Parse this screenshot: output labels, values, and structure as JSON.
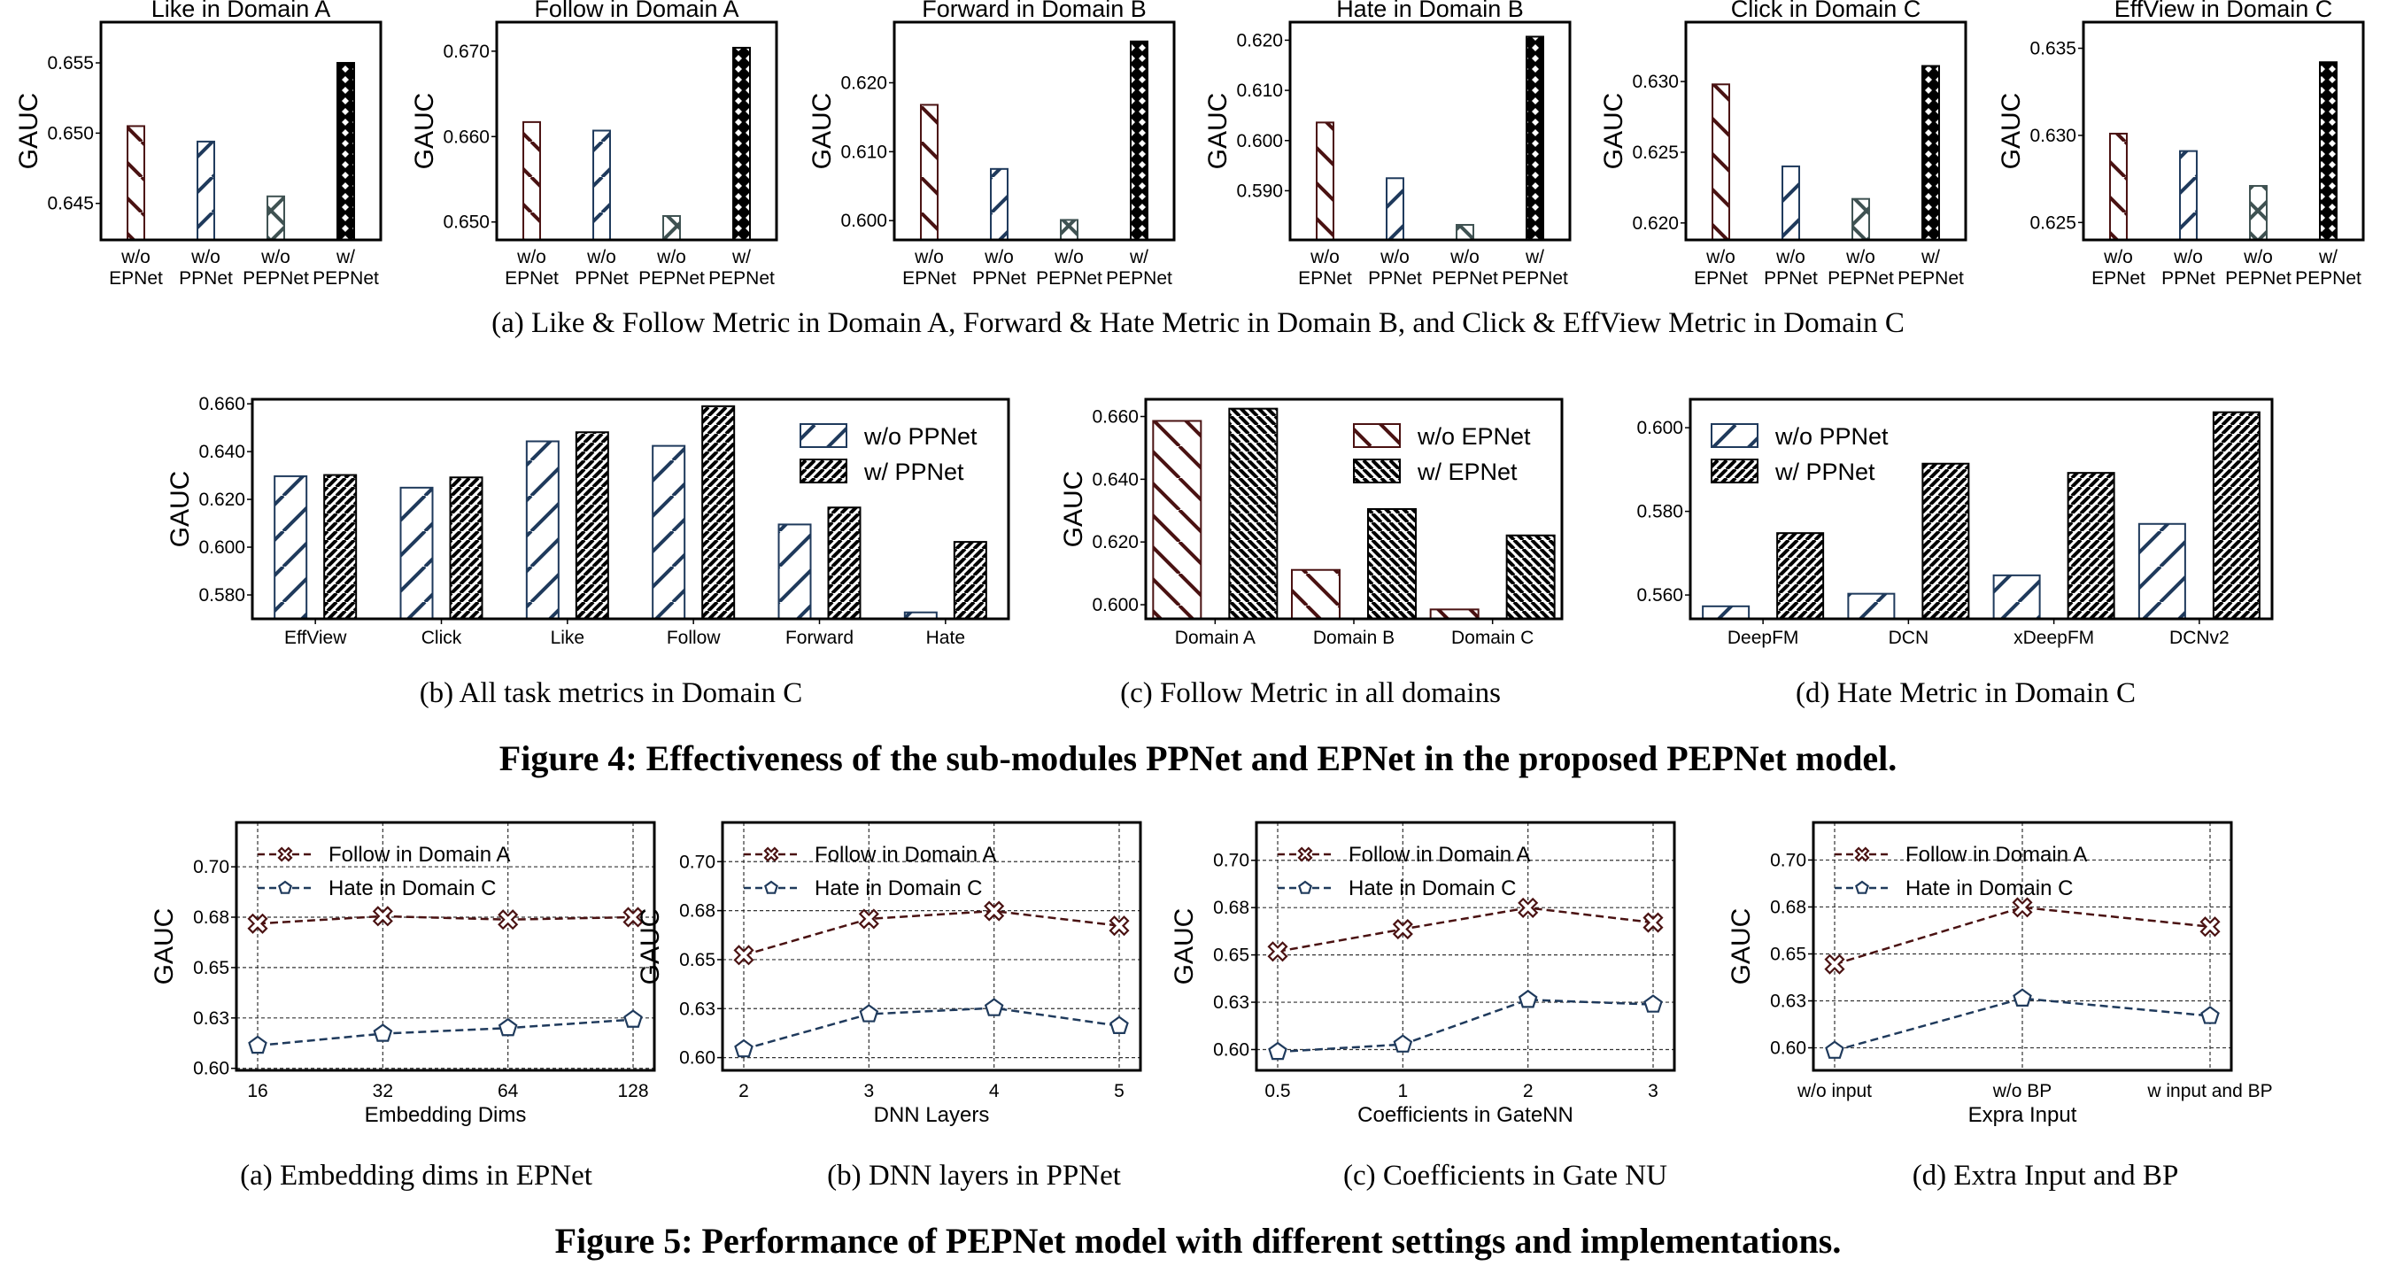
{
  "colors": {
    "wo_epnet": "#4a1212",
    "wo_ppnet": "#1f3a5c",
    "wo_pepnet": "#3f5252",
    "w_pepnet": "#000000",
    "follow_line": "#4a1212",
    "hate_line": "#1f3a5c"
  },
  "captions": {
    "fig4_a": "(a)  Like & Follow Metric in Domain A, Forward & Hate Metric in Domain B, and Click & EffView Metric in Domain C",
    "fig4_b": "(b)  All task metrics in Domain C",
    "fig4_c": "(c)  Follow Metric in all domains",
    "fig4_d": "(d)  Hate Metric in Domain C",
    "fig4": "Figure 4: Effectiveness of the sub-modules PPNet and EPNet in the proposed PEPNet model.",
    "fig5_a": "(a)  Embedding dims in EPNet",
    "fig5_b": "(b)  DNN layers in PPNet",
    "fig5_c": "(c)  Coefficients in Gate NU",
    "fig5_d": "(d)  Extra Input and BP",
    "fig5": "Figure 5: Performance of PEPNet model with different settings and implementations."
  },
  "chart_data": [
    {
      "id": "fig4a-like-a",
      "type": "bar",
      "title": "Like in Domain A",
      "ylabel": "GAUC",
      "categories": [
        "w/o\nEPNet",
        "w/o\nPPNet",
        "w/o\nPEPNet",
        "w/\nPEPNet"
      ],
      "values": [
        0.6505,
        0.6494,
        0.6455,
        0.655
      ],
      "patterns": [
        "wo_epnet",
        "wo_ppnet",
        "wo_pepnet",
        "w_pepnet"
      ],
      "ylim": [
        0.6424,
        0.6579
      ],
      "yticks": [
        0.645,
        0.65,
        0.655
      ],
      "ytick_labels": [
        "0.645",
        "0.650",
        "0.655"
      ]
    },
    {
      "id": "fig4a-follow-a",
      "type": "bar",
      "title": "Follow in Domain A",
      "ylabel": "GAUC",
      "categories": [
        "w/o\nEPNet",
        "w/o\nPPNet",
        "w/o\nPEPNet",
        "w/\nPEPNet"
      ],
      "values": [
        0.6617,
        0.6607,
        0.6507,
        0.6704
      ],
      "patterns": [
        "wo_epnet",
        "wo_ppnet",
        "wo_pepnet",
        "w_pepnet"
      ],
      "ylim": [
        0.6479,
        0.6734
      ],
      "yticks": [
        0.65,
        0.66,
        0.67
      ],
      "ytick_labels": [
        "0.650",
        "0.660",
        "0.670"
      ]
    },
    {
      "id": "fig4a-forward-b",
      "type": "bar",
      "title": "Forward in Domain B",
      "ylabel": "GAUC",
      "categories": [
        "w/o\nEPNet",
        "w/o\nPPNet",
        "w/o\nPEPNet",
        "w/\nPEPNet"
      ],
      "values": [
        0.6168,
        0.6075,
        0.6001,
        0.626
      ],
      "patterns": [
        "wo_epnet",
        "wo_ppnet",
        "wo_pepnet",
        "w_pepnet"
      ],
      "ylim": [
        0.5972,
        0.6288
      ],
      "yticks": [
        0.6,
        0.61,
        0.62
      ],
      "ytick_labels": [
        "0.600",
        "0.610",
        "0.620"
      ]
    },
    {
      "id": "fig4a-hate-b",
      "type": "bar",
      "title": "Hate in Domain B",
      "ylabel": "GAUC",
      "categories": [
        "w/o\nEPNet",
        "w/o\nPPNet",
        "w/o\nPEPNet",
        "w/\nPEPNet"
      ],
      "values": [
        0.6036,
        0.5925,
        0.5832,
        0.6207
      ],
      "patterns": [
        "wo_epnet",
        "wo_ppnet",
        "wo_pepnet",
        "w_pepnet"
      ],
      "ylim": [
        0.5802,
        0.6236
      ],
      "yticks": [
        0.59,
        0.6,
        0.61,
        0.62
      ],
      "ytick_labels": [
        "0.590",
        "0.600",
        "0.610",
        "0.620"
      ]
    },
    {
      "id": "fig4a-click-c",
      "type": "bar",
      "title": "Click in Domain C",
      "ylabel": "GAUC",
      "categories": [
        "w/o\nEPNet",
        "w/o\nPPNet",
        "w/o\nPEPNet",
        "w/\nPEPNet"
      ],
      "values": [
        0.6298,
        0.624,
        0.6217,
        0.6311
      ],
      "patterns": [
        "wo_epnet",
        "wo_ppnet",
        "wo_pepnet",
        "w_pepnet"
      ],
      "ylim": [
        0.6188,
        0.6342
      ],
      "yticks": [
        0.62,
        0.625,
        0.63
      ],
      "ytick_labels": [
        "0.620",
        "0.625",
        "0.630"
      ]
    },
    {
      "id": "fig4a-effview-c",
      "type": "bar",
      "title": "EffView in Domain C",
      "ylabel": "GAUC",
      "categories": [
        "w/o\nEPNet",
        "w/o\nPPNet",
        "w/o\nPEPNet",
        "w/\nPEPNet"
      ],
      "values": [
        0.6301,
        0.6291,
        0.6271,
        0.6342
      ],
      "patterns": [
        "wo_epnet",
        "wo_ppnet",
        "wo_pepnet",
        "w_pepnet"
      ],
      "ylim": [
        0.624,
        0.6365
      ],
      "yticks": [
        0.625,
        0.63,
        0.635
      ],
      "ytick_labels": [
        "0.625",
        "0.630",
        "0.635"
      ]
    },
    {
      "id": "fig4b",
      "type": "bar",
      "title": "",
      "ylabel": "GAUC",
      "legend": "top-right",
      "categories": [
        "EffView",
        "Click",
        "Like",
        "Follow",
        "Forward",
        "Hate"
      ],
      "series": [
        {
          "name": "w/o PPNet",
          "pattern": "wo_ppnet",
          "values": [
            0.6297,
            0.6249,
            0.6443,
            0.6424,
            0.6095,
            0.5727
          ]
        },
        {
          "name": "w/ PPNet",
          "pattern": "w_ppnet",
          "values": [
            0.6302,
            0.6292,
            0.6481,
            0.659,
            0.6166,
            0.6022
          ]
        }
      ],
      "ylim": [
        0.57,
        0.6619
      ],
      "yticks": [
        0.58,
        0.6,
        0.62,
        0.64,
        0.66
      ],
      "ytick_labels": [
        "0.580",
        "0.600",
        "0.620",
        "0.640",
        "0.660"
      ]
    },
    {
      "id": "fig4c",
      "type": "bar",
      "title": "",
      "ylabel": "GAUC",
      "legend": "top-right",
      "categories": [
        "Domain A",
        "Domain B",
        "Domain C"
      ],
      "series": [
        {
          "name": "w/o EPNet",
          "pattern": "wo_epnet_b",
          "values": [
            0.6586,
            0.6111,
            0.5985
          ]
        },
        {
          "name": "w/ EPNet",
          "pattern": "w_epnet",
          "values": [
            0.6625,
            0.6305,
            0.6221
          ]
        }
      ],
      "ylim": [
        0.5955,
        0.6655
      ],
      "yticks": [
        0.6,
        0.62,
        0.64,
        0.66
      ],
      "ytick_labels": [
        "0.600",
        "0.620",
        "0.640",
        "0.660"
      ]
    },
    {
      "id": "fig4d",
      "type": "bar",
      "title": "",
      "ylabel": "",
      "legend": "top-left",
      "categories": [
        "DeepFM",
        "DCN",
        "xDeepFM",
        "DCNv2"
      ],
      "series": [
        {
          "name": "w/o PPNet",
          "pattern": "wo_ppnet",
          "values": [
            0.5573,
            0.5603,
            0.5647,
            0.577
          ]
        },
        {
          "name": "w/ PPNet",
          "pattern": "w_ppnet",
          "values": [
            0.5748,
            0.5914,
            0.5892,
            0.6037
          ]
        }
      ],
      "ylim": [
        0.5543,
        0.6068
      ],
      "yticks": [
        0.56,
        0.58,
        0.6
      ],
      "ytick_labels": [
        "0.560",
        "0.580",
        "0.600"
      ]
    },
    {
      "id": "fig5a",
      "type": "line",
      "xlabel": "Embedding Dims",
      "ylabel": "GAUC",
      "legend": "top-left",
      "x": [
        "16",
        "32",
        "64",
        "128"
      ],
      "series": [
        {
          "name": "Follow in Domain A",
          "marker": "x",
          "color": "follow_line",
          "values": [
            0.6718,
            0.6755,
            0.6738,
            0.675
          ]
        },
        {
          "name": "Hate in Domain C",
          "marker": "pentagon",
          "color": "hate_line",
          "values": [
            0.6113,
            0.6172,
            0.62,
            0.6242
          ]
        }
      ],
      "ylim": [
        0.599,
        0.722
      ],
      "yticks": [
        0.6,
        0.625,
        0.65,
        0.675,
        0.7
      ],
      "ytick_labels": [
        "0.60",
        "0.63",
        "0.65",
        "0.68",
        "0.70"
      ],
      "grid": true
    },
    {
      "id": "fig5b",
      "type": "line",
      "xlabel": "DNN Layers",
      "ylabel": "GAUC",
      "legend": "top-left",
      "x": [
        "2",
        "3",
        "4",
        "5"
      ],
      "series": [
        {
          "name": "Follow in Domain A",
          "marker": "x",
          "color": "follow_line",
          "values": [
            0.6523,
            0.6708,
            0.6748,
            0.6673
          ]
        },
        {
          "name": "Hate in Domain C",
          "marker": "pentagon",
          "color": "hate_line",
          "values": [
            0.6043,
            0.6222,
            0.6253,
            0.6162
          ]
        }
      ],
      "ylim": [
        0.5935,
        0.72
      ],
      "yticks": [
        0.6,
        0.625,
        0.65,
        0.675,
        0.7
      ],
      "ytick_labels": [
        "0.60",
        "0.63",
        "0.65",
        "0.68",
        "0.70"
      ],
      "grid": true
    },
    {
      "id": "fig5c",
      "type": "line",
      "xlabel": "Coefficients in GateNN",
      "ylabel": "GAUC",
      "legend": "top-left",
      "x": [
        "0.5",
        "1",
        "2",
        "3"
      ],
      "series": [
        {
          "name": "Follow in Domain A",
          "marker": "x",
          "color": "follow_line",
          "values": [
            0.6518,
            0.6636,
            0.6749,
            0.6671
          ]
        },
        {
          "name": "Hate in Domain C",
          "marker": "pentagon",
          "color": "hate_line",
          "values": [
            0.5988,
            0.6027,
            0.6263,
            0.6238
          ]
        }
      ],
      "ylim": [
        0.589,
        0.72
      ],
      "yticks": [
        0.6,
        0.625,
        0.65,
        0.675,
        0.7
      ],
      "ytick_labels": [
        "0.60",
        "0.63",
        "0.65",
        "0.68",
        "0.70"
      ],
      "grid": true
    },
    {
      "id": "fig5d",
      "type": "line",
      "xlabel": "Expra Input",
      "ylabel": "GAUC",
      "legend": "top-left",
      "x": [
        "w/o input",
        "w/o BP",
        "w input and BP"
      ],
      "series": [
        {
          "name": "Follow in Domain A",
          "marker": "x",
          "color": "follow_line",
          "values": [
            0.6445,
            0.6748,
            0.6645
          ]
        },
        {
          "name": "Hate in Domain C",
          "marker": "pentagon",
          "color": "hate_line",
          "values": [
            0.5985,
            0.6263,
            0.617
          ]
        }
      ],
      "ylim": [
        0.588,
        0.72
      ],
      "yticks": [
        0.6,
        0.625,
        0.65,
        0.675,
        0.7
      ],
      "ytick_labels": [
        "0.60",
        "0.63",
        "0.65",
        "0.68",
        "0.70"
      ],
      "grid": true
    }
  ]
}
